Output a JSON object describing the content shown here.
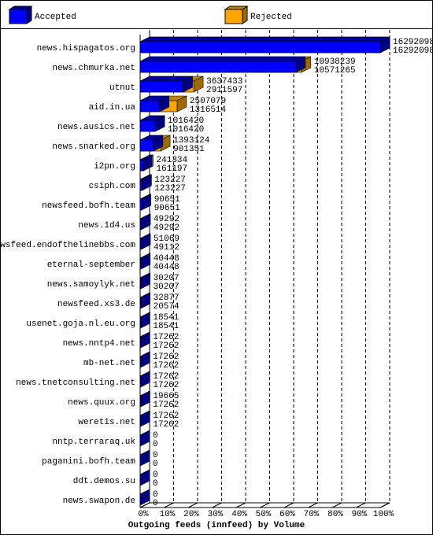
{
  "chart_data": {
    "type": "bar3d",
    "title": "Outgoing feeds (innfeed) by Volume",
    "categories": [
      "news.hispagatos.org",
      "news.chmurka.net",
      "utnut",
      "aid.in.ua",
      "news.ausics.net",
      "news.snarked.org",
      "i2pn.org",
      "csiph.com",
      "newsfeed.bofh.team",
      "news.1d4.us",
      "newsfeed.endofthelinebbs.com",
      "eternal-september",
      "news.samoylyk.net",
      "newsfeed.xs3.de",
      "usenet.goja.nl.eu.org",
      "news.nntp4.net",
      "mb-net.net",
      "news.tnetconsulting.net",
      "news.quux.org",
      "weretis.net",
      "nntp.terraraq.uk",
      "paganini.bofh.team",
      "ddt.demos.su",
      "news.swapon.de"
    ],
    "series": [
      {
        "name": "Accepted",
        "color": "#0000ff",
        "values": [
          16292098,
          10571265,
          2911597,
          1316514,
          1016420,
          901351,
          161197,
          123227,
          90651,
          49292,
          49112,
          40448,
          30207,
          20574,
          18541,
          17262,
          17262,
          17262,
          17262,
          17262,
          0,
          0,
          0,
          0
        ]
      },
      {
        "name": "Rejected",
        "color": "#ffa500",
        "values": [
          16292098,
          10938239,
          3637433,
          2507079,
          1016420,
          1393124,
          241334,
          123227,
          90651,
          49292,
          51069,
          40448,
          30207,
          32877,
          18541,
          17262,
          17262,
          17262,
          19665,
          17262,
          0,
          0,
          0,
          0
        ]
      }
    ],
    "xlim": [
      0,
      16292098
    ],
    "xticks": [
      {
        "value": 0,
        "label": "0%"
      },
      {
        "value": 1629209.8,
        "label": "10%"
      },
      {
        "value": 3258419.6,
        "label": "20%"
      },
      {
        "value": 4887629.4,
        "label": "30%"
      },
      {
        "value": 6516839.2,
        "label": "40%"
      },
      {
        "value": 8146049,
        "label": "50%"
      },
      {
        "value": 9775258.8,
        "label": "60%"
      },
      {
        "value": 11404468.6,
        "label": "70%"
      },
      {
        "value": 13033678.4,
        "label": "80%"
      },
      {
        "value": 14662888.2,
        "label": "90%"
      },
      {
        "value": 16292098,
        "label": "100%"
      }
    ],
    "grid": true
  }
}
